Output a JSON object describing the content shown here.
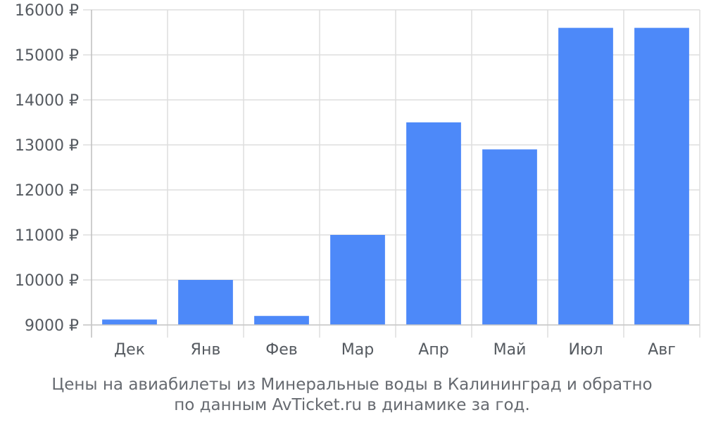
{
  "chart_data": {
    "type": "bar",
    "categories": [
      "Дек",
      "Янв",
      "Фев",
      "Мар",
      "Апр",
      "Май",
      "Июл",
      "Авг"
    ],
    "values": [
      9120,
      10000,
      9200,
      11000,
      13500,
      12900,
      15600,
      15600
    ],
    "ylim": [
      9000,
      16000
    ],
    "yticks": [
      9000,
      10000,
      11000,
      12000,
      13000,
      14000,
      15000,
      16000
    ],
    "ytick_suffix": " ₽",
    "grid": true,
    "bar_color": "#4d89f9",
    "caption": {
      "line1": "Цены на авиабилеты из Минеральные воды в Калининград и обратно",
      "line2": "по данным AvTicket.ru в динамике за год."
    }
  }
}
